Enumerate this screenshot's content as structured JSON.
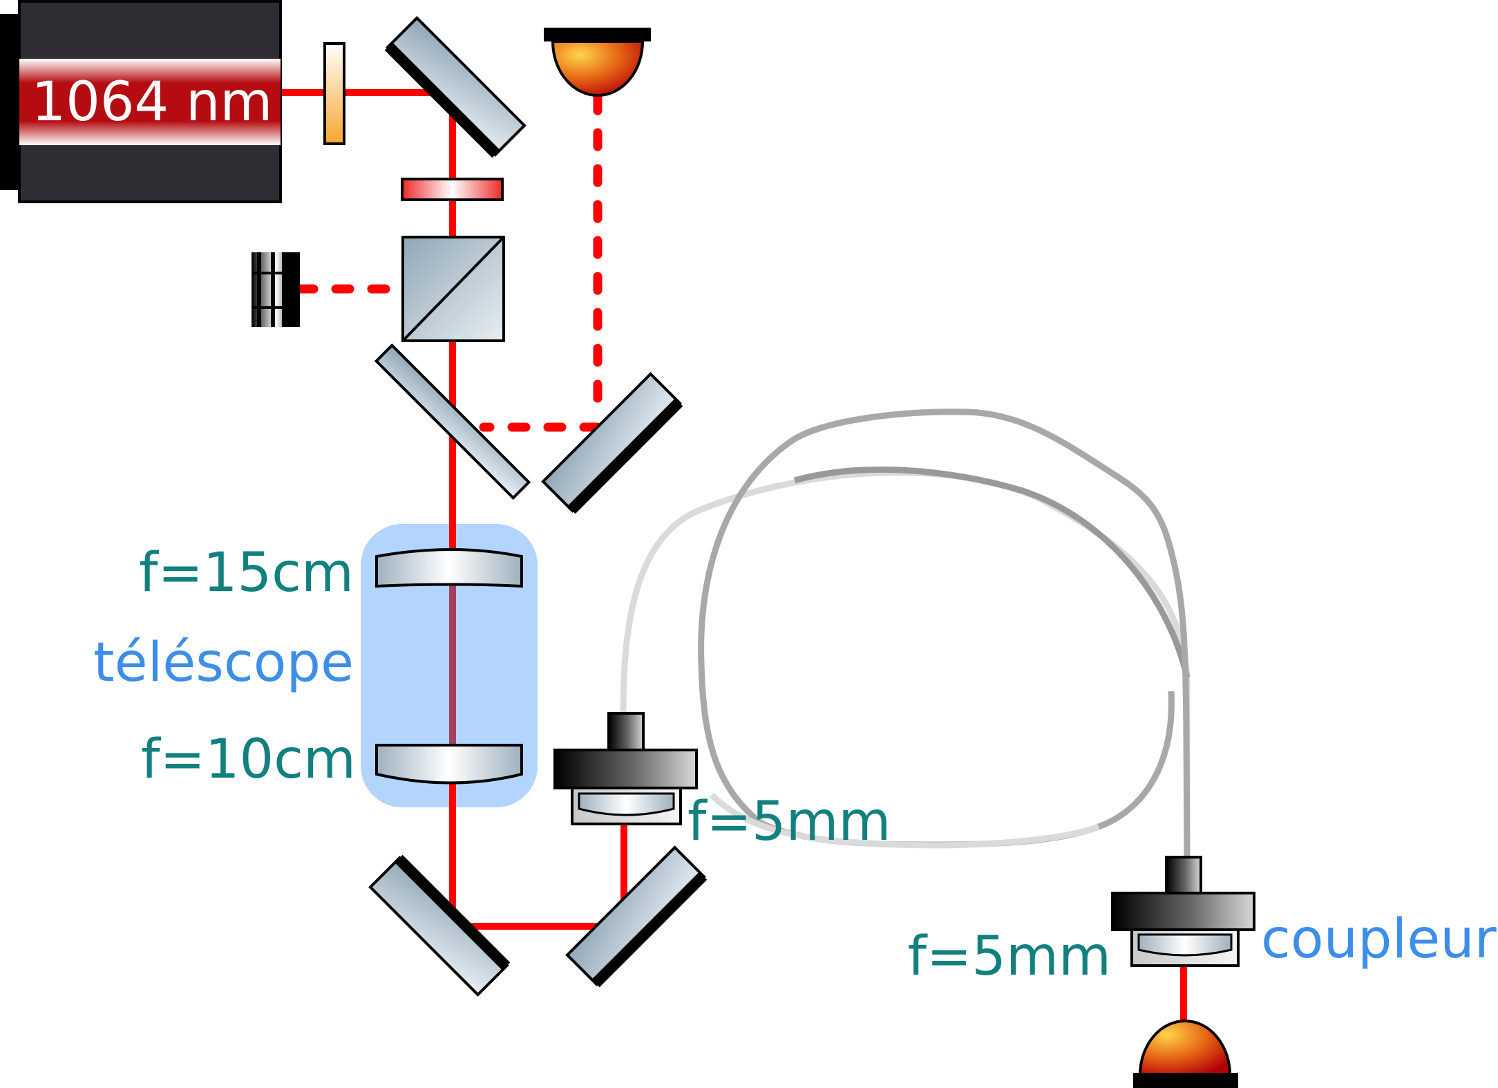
{
  "laser": {
    "label": "1064 nm"
  },
  "telescope": {
    "label": "téléscope",
    "lens_top_label": "f=15cm",
    "lens_bottom_label": "f=10cm"
  },
  "input_coupler": {
    "focal_label": "f=5mm"
  },
  "output_coupler": {
    "focal_label": "f=5mm",
    "label": "coupleur"
  },
  "colors": {
    "beam": "#ff0000",
    "telescope_highlight": "#b3d4fc",
    "laser_body": "#302c33",
    "focal_text": "#12807e",
    "name_text": "#3d8ee8"
  }
}
